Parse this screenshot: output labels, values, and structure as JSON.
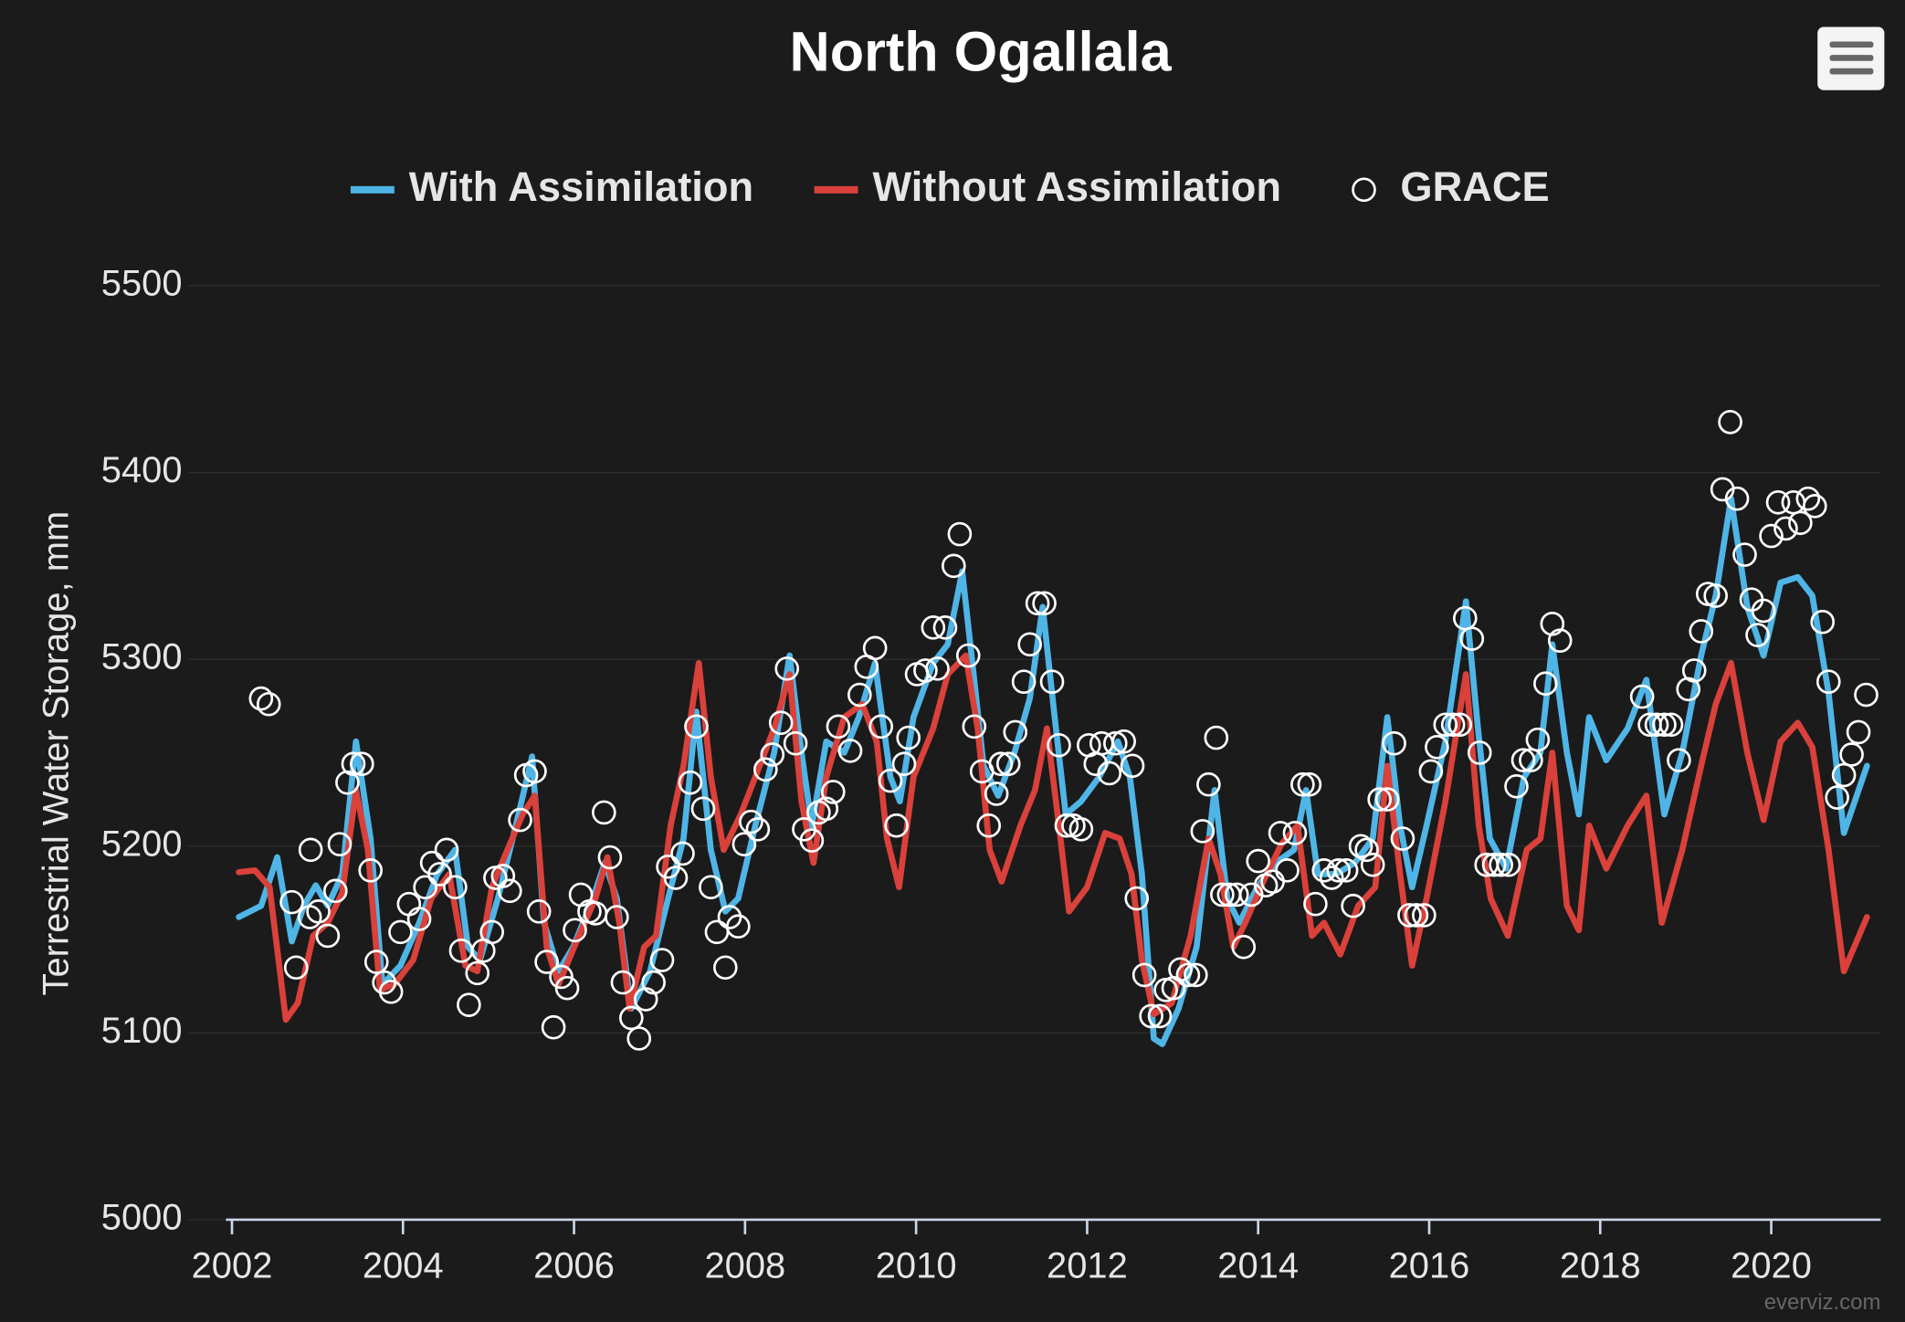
{
  "chart_data": {
    "type": "line",
    "title": "North Ogallala",
    "y_label": "Terrestrial Water Storage, mm",
    "credits": "everviz.com",
    "legend": "top",
    "grid": true,
    "xlim": [
      2001.93,
      2021.28
    ],
    "xticks": [
      2002,
      2004,
      2006,
      2008,
      2010,
      2012,
      2014,
      2016,
      2018,
      2020
    ],
    "ylim": [
      5000,
      5500
    ],
    "yticks": [
      5000,
      5100,
      5200,
      5300,
      5400,
      5500
    ],
    "series": [
      {
        "name": "With Assimilation",
        "color": "#4fb5e6",
        "type": "line",
        "x": [
          2002.08,
          2002.34,
          2002.53,
          2002.7,
          2002.84,
          2002.98,
          2003.12,
          2003.29,
          2003.45,
          2003.62,
          2003.76,
          2003.97,
          2004.19,
          2004.4,
          2004.61,
          2004.76,
          2004.9,
          2005.11,
          2005.32,
          2005.51,
          2005.65,
          2005.82,
          2005.99,
          2006.22,
          2006.36,
          2006.5,
          2006.67,
          2006.89,
          2007.1,
          2007.28,
          2007.43,
          2007.6,
          2007.77,
          2007.92,
          2008.12,
          2008.34,
          2008.52,
          2008.66,
          2008.78,
          2008.95,
          2009.16,
          2009.33,
          2009.52,
          2009.7,
          2009.81,
          2009.97,
          2010.2,
          2010.37,
          2010.54,
          2010.68,
          2010.79,
          2010.96,
          2011.15,
          2011.33,
          2011.48,
          2011.62,
          2011.75,
          2011.93,
          2012.14,
          2012.36,
          2012.5,
          2012.64,
          2012.78,
          2012.88,
          2013.07,
          2013.28,
          2013.49,
          2013.64,
          2013.78,
          2013.99,
          2014.2,
          2014.42,
          2014.56,
          2014.7,
          2014.91,
          2015.13,
          2015.34,
          2015.51,
          2015.66,
          2015.8,
          2015.97,
          2016.19,
          2016.43,
          2016.57,
          2016.71,
          2016.9,
          2017.11,
          2017.3,
          2017.44,
          2017.61,
          2017.75,
          2017.87,
          2018.07,
          2018.32,
          2018.54,
          2018.75,
          2018.96,
          2019.18,
          2019.35,
          2019.53,
          2019.72,
          2019.91,
          2020.11,
          2020.31,
          2020.48,
          2020.67,
          2020.85,
          2021.12
        ],
        "values": [
          5162,
          5168,
          5194,
          5149,
          5168,
          5179,
          5168,
          5185,
          5256,
          5204,
          5126,
          5136,
          5159,
          5185,
          5198,
          5146,
          5139,
          5172,
          5211,
          5248,
          5159,
          5133,
          5146,
          5172,
          5191,
          5172,
          5113,
          5133,
          5172,
          5204,
          5272,
          5198,
          5165,
          5172,
          5211,
          5250,
          5302,
          5250,
          5211,
          5256,
          5250,
          5269,
          5298,
          5237,
          5224,
          5269,
          5298,
          5308,
          5347,
          5289,
          5243,
          5227,
          5250,
          5279,
          5328,
          5269,
          5217,
          5224,
          5237,
          5256,
          5237,
          5185,
          5097,
          5094,
          5113,
          5146,
          5230,
          5172,
          5159,
          5178,
          5191,
          5198,
          5230,
          5185,
          5185,
          5191,
          5204,
          5269,
          5211,
          5178,
          5211,
          5256,
          5331,
          5263,
          5204,
          5188,
          5237,
          5250,
          5308,
          5250,
          5217,
          5269,
          5246,
          5263,
          5289,
          5217,
          5250,
          5302,
          5334,
          5386,
          5328,
          5302,
          5341,
          5344,
          5334,
          5282,
          5207,
          5243
        ]
      },
      {
        "name": "Without Assimilation",
        "color": "#d9413a",
        "type": "line",
        "x": [
          2002.08,
          2002.27,
          2002.44,
          2002.63,
          2002.77,
          2002.95,
          2003.12,
          2003.29,
          2003.45,
          2003.59,
          2003.73,
          2003.9,
          2004.12,
          2004.33,
          2004.54,
          2004.73,
          2004.87,
          2005.04,
          2005.22,
          2005.4,
          2005.54,
          2005.68,
          2005.82,
          2006.03,
          2006.25,
          2006.39,
          2006.53,
          2006.65,
          2006.82,
          2006.96,
          2007.13,
          2007.28,
          2007.46,
          2007.6,
          2007.75,
          2007.95,
          2008.12,
          2008.34,
          2008.52,
          2008.66,
          2008.8,
          2008.95,
          2009.16,
          2009.37,
          2009.54,
          2009.66,
          2009.8,
          2009.97,
          2010.2,
          2010.37,
          2010.58,
          2010.72,
          2010.86,
          2011.0,
          2011.22,
          2011.39,
          2011.53,
          2011.67,
          2011.79,
          2012.0,
          2012.21,
          2012.38,
          2012.52,
          2012.64,
          2012.78,
          2012.99,
          2013.21,
          2013.42,
          2013.56,
          2013.71,
          2013.85,
          2014.06,
          2014.27,
          2014.46,
          2014.63,
          2014.77,
          2014.96,
          2015.17,
          2015.37,
          2015.51,
          2015.66,
          2015.8,
          2015.97,
          2016.19,
          2016.43,
          2016.58,
          2016.72,
          2016.92,
          2017.14,
          2017.3,
          2017.44,
          2017.61,
          2017.75,
          2017.87,
          2018.07,
          2018.32,
          2018.54,
          2018.72,
          2018.96,
          2019.18,
          2019.35,
          2019.53,
          2019.72,
          2019.91,
          2020.11,
          2020.31,
          2020.48,
          2020.67,
          2020.85,
          2021.12
        ],
        "values": [
          5186,
          5187,
          5178,
          5107,
          5116,
          5152,
          5159,
          5175,
          5230,
          5198,
          5123,
          5126,
          5139,
          5172,
          5185,
          5136,
          5133,
          5178,
          5198,
          5217,
          5227,
          5146,
          5126,
          5149,
          5172,
          5194,
          5159,
          5113,
          5146,
          5152,
          5211,
          5243,
          5298,
          5237,
          5198,
          5217,
          5237,
          5263,
          5292,
          5224,
          5191,
          5237,
          5269,
          5276,
          5256,
          5204,
          5178,
          5237,
          5263,
          5292,
          5302,
          5263,
          5198,
          5181,
          5211,
          5230,
          5263,
          5211,
          5165,
          5178,
          5207,
          5204,
          5185,
          5139,
          5110,
          5116,
          5152,
          5204,
          5185,
          5146,
          5159,
          5181,
          5201,
          5211,
          5152,
          5159,
          5142,
          5168,
          5178,
          5243,
          5185,
          5136,
          5172,
          5224,
          5292,
          5211,
          5172,
          5152,
          5198,
          5204,
          5250,
          5168,
          5155,
          5211,
          5188,
          5211,
          5227,
          5159,
          5198,
          5243,
          5276,
          5298,
          5250,
          5214,
          5256,
          5266,
          5253,
          5198,
          5133,
          5162
        ]
      },
      {
        "name": "GRACE",
        "color": "#ffffff",
        "type": "scatter",
        "x": [
          2002.34,
          2002.43,
          2002.7,
          2002.75,
          2002.91,
          2002.92,
          2003.01,
          2003.12,
          2003.21,
          2003.26,
          2003.35,
          2003.42,
          2003.52,
          2003.62,
          2003.69,
          2003.78,
          2003.86,
          2003.97,
          2004.07,
          2004.19,
          2004.26,
          2004.34,
          2004.43,
          2004.51,
          2004.61,
          2004.68,
          2004.77,
          2004.87,
          2004.94,
          2005.04,
          2005.08,
          2005.17,
          2005.25,
          2005.37,
          2005.44,
          2005.54,
          2005.59,
          2005.68,
          2005.76,
          2005.85,
          2005.92,
          2006.01,
          2006.08,
          2006.18,
          2006.25,
          2006.35,
          2006.42,
          2006.5,
          2006.57,
          2006.67,
          2006.76,
          2006.84,
          2006.93,
          2007.03,
          2007.1,
          2007.19,
          2007.27,
          2007.36,
          2007.43,
          2007.51,
          2007.6,
          2007.67,
          2007.77,
          2007.82,
          2007.92,
          2007.99,
          2008.07,
          2008.15,
          2008.24,
          2008.32,
          2008.42,
          2008.49,
          2008.59,
          2008.69,
          2008.78,
          2008.86,
          2008.95,
          2009.03,
          2009.09,
          2009.23,
          2009.34,
          2009.42,
          2009.52,
          2009.59,
          2009.7,
          2009.77,
          2009.86,
          2009.91,
          2010.01,
          2010.11,
          2010.2,
          2010.25,
          2010.34,
          2010.44,
          2010.51,
          2010.61,
          2010.68,
          2010.77,
          2010.85,
          2010.94,
          2010.99,
          2011.08,
          2011.16,
          2011.26,
          2011.33,
          2011.42,
          2011.5,
          2011.59,
          2011.67,
          2011.76,
          2011.84,
          2011.93,
          2012.02,
          2012.1,
          2012.17,
          2012.26,
          2012.33,
          2012.43,
          2012.53,
          2012.58,
          2012.67,
          2012.75,
          2012.85,
          2012.92,
          2013.01,
          2013.09,
          2013.18,
          2013.27,
          2013.35,
          2013.42,
          2013.51,
          2013.58,
          2013.66,
          2013.75,
          2013.83,
          2013.92,
          2014.0,
          2014.09,
          2014.17,
          2014.26,
          2014.34,
          2014.43,
          2014.52,
          2014.6,
          2014.67,
          2014.77,
          2014.86,
          2014.94,
          2015.03,
          2015.11,
          2015.2,
          2015.27,
          2015.34,
          2015.42,
          2015.51,
          2015.59,
          2015.69,
          2015.77,
          2015.85,
          2015.94,
          2016.02,
          2016.09,
          2016.19,
          2016.28,
          2016.36,
          2016.42,
          2016.5,
          2016.59,
          2016.67,
          2016.76,
          2016.84,
          2016.93,
          2017.02,
          2017.1,
          2017.19,
          2017.27,
          2017.36,
          2017.44,
          2017.53,
          2018.49,
          2018.58,
          2018.66,
          2018.75,
          2018.83,
          2018.92,
          2019.03,
          2019.1,
          2019.18,
          2019.26,
          2019.35,
          2019.43,
          2019.52,
          2019.6,
          2019.69,
          2019.77,
          2019.84,
          2019.91,
          2020.0,
          2020.08,
          2020.17,
          2020.26,
          2020.34,
          2020.43,
          2020.51,
          2020.6,
          2020.67,
          2020.77,
          2020.85,
          2020.94,
          2021.02,
          2021.11
        ],
        "values": [
          5279,
          5276,
          5170,
          5135,
          5162,
          5198,
          5165,
          5152,
          5176,
          5201,
          5234,
          5244,
          5244,
          5187,
          5138,
          5127,
          5122,
          5154,
          5169,
          5161,
          5178,
          5191,
          5185,
          5198,
          5178,
          5144,
          5115,
          5132,
          5144,
          5154,
          5183,
          5184,
          5176,
          5214,
          5238,
          5240,
          5165,
          5138,
          5103,
          5130,
          5124,
          5155,
          5174,
          5165,
          5164,
          5218,
          5194,
          5162,
          5127,
          5108,
          5097,
          5118,
          5127,
          5139,
          5189,
          5183,
          5196,
          5234,
          5264,
          5220,
          5178,
          5154,
          5135,
          5162,
          5157,
          5201,
          5213,
          5209,
          5241,
          5249,
          5266,
          5295,
          5255,
          5209,
          5203,
          5218,
          5220,
          5229,
          5264,
          5251,
          5281,
          5296,
          5306,
          5264,
          5235,
          5211,
          5244,
          5258,
          5292,
          5294,
          5317,
          5295,
          5317,
          5350,
          5367,
          5302,
          5264,
          5240,
          5211,
          5228,
          5244,
          5244,
          5261,
          5288,
          5308,
          5330,
          5330,
          5288,
          5254,
          5211,
          5211,
          5209,
          5254,
          5244,
          5255,
          5239,
          5255,
          5256,
          5243,
          5172,
          5131,
          5109,
          5109,
          5123,
          5124,
          5134,
          5131,
          5131,
          5208,
          5233,
          5258,
          5174,
          5174,
          5174,
          5146,
          5174,
          5192,
          5179,
          5181,
          5207,
          5187,
          5207,
          5233,
          5233,
          5169,
          5187,
          5183,
          5187,
          5187,
          5168,
          5200,
          5198,
          5190,
          5225,
          5225,
          5255,
          5204,
          5163,
          5163,
          5163,
          5240,
          5253,
          5265,
          5265,
          5265,
          5322,
          5311,
          5250,
          5190,
          5190,
          5190,
          5190,
          5232,
          5246,
          5246,
          5257,
          5287,
          5319,
          5310,
          5280,
          5265,
          5265,
          5265,
          5265,
          5246,
          5284,
          5294,
          5315,
          5335,
          5334,
          5391,
          5427,
          5386,
          5356,
          5332,
          5313,
          5326,
          5366,
          5384,
          5370,
          5384,
          5373,
          5386,
          5382,
          5320,
          5288,
          5226,
          5238,
          5249,
          5261,
          5281
        ]
      }
    ]
  }
}
